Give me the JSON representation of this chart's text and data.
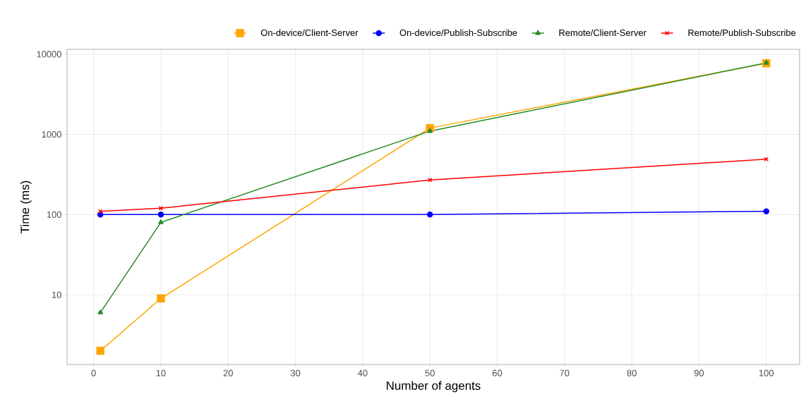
{
  "chart_data": {
    "type": "line",
    "xlabel": "Number of agents",
    "ylabel": "Time (ms)",
    "x": [
      1,
      10,
      50,
      100
    ],
    "series": [
      {
        "name": "On-device/Client-Server",
        "color": "#ffa500",
        "marker": "square",
        "values": [
          2,
          9,
          1200,
          7700
        ]
      },
      {
        "name": "On-device/Publish-Subscribe",
        "color": "#0000ff",
        "marker": "circle",
        "values": [
          100,
          100,
          100,
          110
        ]
      },
      {
        "name": "Remote/Client-Server",
        "color": "#228b22",
        "marker": "triangle",
        "values": [
          6,
          80,
          1100,
          7800
        ]
      },
      {
        "name": "Remote/Publish-Subscribe",
        "color": "#ff0000",
        "marker": "cross",
        "values": [
          110,
          120,
          270,
          490
        ]
      }
    ],
    "xlim": [
      -3.95,
      104.95
    ],
    "xticks": [
      0,
      10,
      20,
      30,
      40,
      50,
      60,
      70,
      80,
      90,
      100
    ],
    "ylim": [
      1.35,
      11500
    ],
    "yticks": [
      10,
      100,
      1000,
      10000
    ],
    "log": "y",
    "grid": true,
    "legend": "top",
    "line_style": "solid"
  }
}
